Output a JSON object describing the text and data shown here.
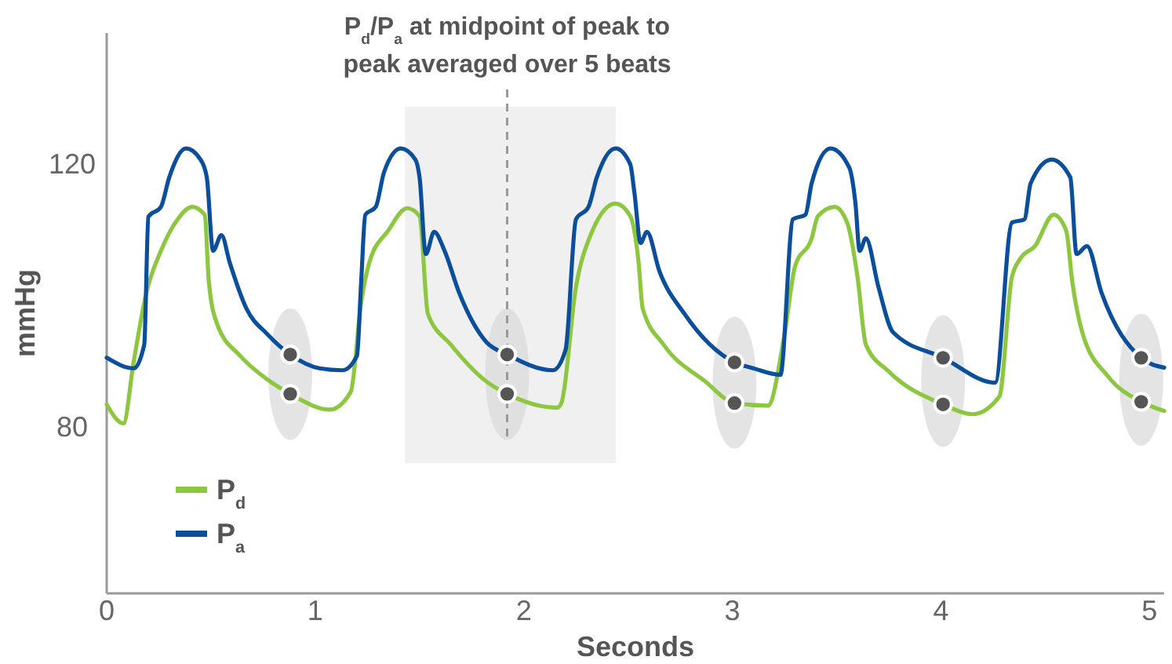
{
  "chart_data": {
    "type": "line",
    "xlabel": "Seconds",
    "ylabel": "mmHg",
    "xlim": [
      0,
      5.07
    ],
    "xticks": [
      0,
      1,
      2,
      3,
      4,
      5
    ],
    "ylim": [
      54.6,
      140
    ],
    "yticks": [
      80,
      120
    ],
    "grid": false,
    "legend": "bottom left",
    "line_style": "solid",
    "marker": "none",
    "series": [
      {
        "name": "P$_{d}$",
        "color": "#8dc63f",
        "x": [
          0,
          0.08,
          0.13,
          0.19,
          0.26,
          0.34,
          0.41,
          0.47,
          0.49,
          0.53,
          0.64,
          0.77,
          0.88,
          1.07,
          1.17,
          1.22,
          1.26,
          1.35,
          1.44,
          1.5,
          1.54,
          1.65,
          1.82,
          1.92,
          2.16,
          2.18,
          2.25,
          2.32,
          2.44,
          2.51,
          2.55,
          2.57,
          2.67,
          2.87,
          3.01,
          3.17,
          3.25,
          3.3,
          3.38,
          3.41,
          3.49,
          3.55,
          3.6,
          3.64,
          3.75,
          4.01,
          4.15,
          4.28,
          4.34,
          4.38,
          4.45,
          4.54,
          4.6,
          4.63,
          4.68,
          4.8,
          4.96,
          5.07
        ],
        "values": [
          83.4,
          80.5,
          90,
          100.4,
          106.8,
          111.6,
          113.5,
          112.3,
          102,
          95.6,
          90.8,
          87.2,
          85,
          82.6,
          85.3,
          98.9,
          105.1,
          109.9,
          113.3,
          112.1,
          97.2,
          92.5,
          86.9,
          85,
          82.9,
          83.6,
          101.3,
          109.2,
          114,
          112.1,
          105.1,
          98,
          92.5,
          86.9,
          83.6,
          83.2,
          94.1,
          104.4,
          108.7,
          112.1,
          113.5,
          111.1,
          102.8,
          92.5,
          88.4,
          83.4,
          81.9,
          84.6,
          102.8,
          105.6,
          107.5,
          112.3,
          109.9,
          102,
          94.1,
          87.7,
          83.8,
          82.4
        ]
      },
      {
        "name": "P$_{a}$",
        "color": "#0b4f9c",
        "x": [
          0,
          0.13,
          0.18,
          0.2,
          0.26,
          0.3,
          0.38,
          0.45,
          0.48,
          0.51,
          0.55,
          0.59,
          0.67,
          0.77,
          0.88,
          1.02,
          1.13,
          1.2,
          1.22,
          1.24,
          1.29,
          1.33,
          1.41,
          1.48,
          1.5,
          1.53,
          1.57,
          1.62,
          1.69,
          1.82,
          1.92,
          2.14,
          2.2,
          2.25,
          2.31,
          2.35,
          2.44,
          2.51,
          2.53,
          2.56,
          2.59,
          2.65,
          2.77,
          3.01,
          3.1,
          3.23,
          3.29,
          3.35,
          3.38,
          3.47,
          3.56,
          3.59,
          3.61,
          3.64,
          3.7,
          3.77,
          4.01,
          4.26,
          4.34,
          4.4,
          4.43,
          4.53,
          4.62,
          4.65,
          4.7,
          4.77,
          4.96,
          5.07
        ],
        "values": [
          90.5,
          88.9,
          92.5,
          112,
          113.5,
          118,
          122.4,
          120.7,
          118,
          106.8,
          109.2,
          105,
          98,
          94.1,
          91,
          88.9,
          88.6,
          90.8,
          102,
          112.3,
          113.5,
          118.8,
          122.4,
          120.7,
          118,
          106.3,
          109.7,
          106.8,
          100.4,
          92.9,
          91,
          88.6,
          91.7,
          111.6,
          113.5,
          118,
          122.4,
          120,
          115.7,
          108,
          109.7,
          103.7,
          97.2,
          89.8,
          88.9,
          87.9,
          111.6,
          112.3,
          117.1,
          122.4,
          119.5,
          114,
          106.8,
          108.7,
          101.3,
          94.4,
          90.5,
          86.7,
          111.1,
          111.6,
          117.1,
          120.7,
          118,
          106.3,
          107.5,
          100.4,
          90.5,
          89
        ]
      },
      {
        "type": "scatter",
        "marker": "circle",
        "color": "#555555",
        "x": [
          0.88,
          1.92,
          3.01,
          4.01,
          4.96
        ],
        "values": [
          91,
          91,
          89.8,
          90.5,
          90.5
        ]
      },
      {
        "type": "scatter",
        "marker": "circle",
        "color": "#555555",
        "x": [
          0.88,
          1.92,
          3.01,
          4.01,
          4.96
        ],
        "values": [
          85,
          85,
          83.6,
          83.4,
          83.8
        ]
      }
    ],
    "bands": [
      {
        "axis": "x",
        "from": 1.43,
        "to": 2.44,
        "color": "#f0f0f0"
      }
    ],
    "ref_lines": [
      {
        "axis": "x",
        "value": 1.92,
        "label": "P$_{d}$/P$_{a}$ at midpoint of peak to\npeak averaged over 5 beats",
        "color": "#999999",
        "line_style": "dashed"
      }
    ]
  }
}
